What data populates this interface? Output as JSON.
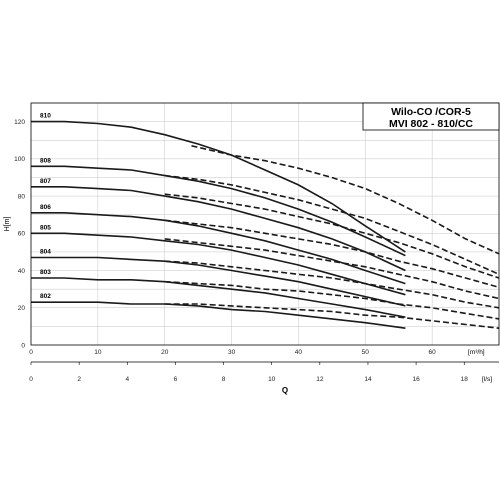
{
  "chart_data": {
    "type": "line",
    "title_lines": [
      "Wilo-CO /COR-5",
      "MVI 802 - 810/CC"
    ],
    "ylabel": "H[m]",
    "xlabel": "Q",
    "x_unit_top": "[m³/h]",
    "x_unit_bottom": "[l/s]",
    "xlim": [
      0,
      70
    ],
    "ylim": [
      0,
      130
    ],
    "x_ticks": [
      0,
      10,
      20,
      30,
      40,
      50,
      60
    ],
    "y_ticks": [
      0,
      20,
      40,
      60,
      80,
      100,
      120
    ],
    "x2_ticks": [
      0,
      2,
      4,
      6,
      8,
      10,
      12,
      14,
      16,
      18
    ],
    "grid": true,
    "line_color": "#1a1a1a",
    "series": [
      {
        "name": "810",
        "solid": {
          "x": [
            0,
            5,
            10,
            15,
            20,
            25,
            30,
            35,
            40,
            45,
            50,
            56
          ],
          "y": [
            120,
            120,
            119,
            117,
            113,
            108,
            102,
            94,
            86,
            76,
            64,
            50
          ]
        },
        "dashed": {
          "x": [
            24,
            30,
            35,
            40,
            45,
            50,
            55,
            60,
            65,
            70
          ],
          "y": [
            107,
            102,
            99,
            95,
            90,
            84,
            76,
            67,
            57,
            49
          ]
        }
      },
      {
        "name": "808",
        "solid": {
          "x": [
            0,
            5,
            10,
            15,
            20,
            25,
            30,
            35,
            40,
            45,
            50,
            56
          ],
          "y": [
            96,
            96,
            95,
            94,
            91,
            88,
            84,
            79,
            73,
            66,
            58,
            48
          ]
        },
        "dashed": {
          "x": [
            20,
            25,
            30,
            35,
            40,
            45,
            50,
            55,
            60,
            65,
            70
          ],
          "y": [
            91,
            89,
            86,
            82,
            78,
            73,
            68,
            61,
            54,
            46,
            38
          ]
        }
      },
      {
        "name": "807",
        "solid": {
          "x": [
            0,
            5,
            10,
            15,
            20,
            25,
            30,
            35,
            40,
            45,
            50,
            56
          ],
          "y": [
            85,
            85,
            84,
            83,
            80,
            77,
            73,
            68,
            63,
            57,
            50,
            40
          ]
        },
        "dashed": {
          "x": [
            20,
            25,
            30,
            35,
            40,
            45,
            50,
            55,
            60,
            65,
            70
          ],
          "y": [
            81,
            79,
            76,
            73,
            69,
            65,
            60,
            55,
            49,
            42,
            36
          ]
        }
      },
      {
        "name": "806",
        "solid": {
          "x": [
            0,
            5,
            10,
            15,
            20,
            25,
            30,
            35,
            40,
            45,
            50,
            56
          ],
          "y": [
            71,
            71,
            70,
            69,
            67,
            64,
            60,
            56,
            51,
            46,
            40,
            33
          ]
        },
        "dashed": {
          "x": [
            20,
            25,
            30,
            35,
            40,
            45,
            50,
            55,
            60,
            65,
            70
          ],
          "y": [
            67,
            65,
            63,
            60,
            57,
            54,
            50,
            45,
            41,
            36,
            31
          ]
        }
      },
      {
        "name": "805",
        "solid": {
          "x": [
            0,
            5,
            10,
            15,
            20,
            25,
            30,
            35,
            40,
            45,
            50,
            56
          ],
          "y": [
            60,
            60,
            59,
            58,
            56,
            54,
            51,
            47,
            43,
            38,
            33,
            27
          ]
        },
        "dashed": {
          "x": [
            20,
            25,
            30,
            35,
            40,
            45,
            50,
            55,
            60,
            65,
            70
          ],
          "y": [
            57,
            55,
            53,
            51,
            48,
            45,
            42,
            38,
            34,
            29,
            25
          ]
        }
      },
      {
        "name": "804",
        "solid": {
          "x": [
            0,
            5,
            10,
            15,
            20,
            25,
            30,
            35,
            40,
            45,
            50,
            56
          ],
          "y": [
            47,
            47,
            47,
            46,
            45,
            43,
            40,
            37,
            34,
            30,
            26,
            21
          ]
        },
        "dashed": {
          "x": [
            20,
            25,
            30,
            35,
            40,
            45,
            50,
            55,
            60,
            65,
            70
          ],
          "y": [
            45,
            44,
            42,
            40,
            38,
            36,
            33,
            30,
            27,
            23,
            20
          ]
        }
      },
      {
        "name": "803",
        "solid": {
          "x": [
            0,
            5,
            10,
            15,
            20,
            25,
            30,
            35,
            40,
            45,
            50,
            56
          ],
          "y": [
            36,
            36,
            35,
            35,
            34,
            32,
            30,
            28,
            25,
            22,
            19,
            15
          ]
        },
        "dashed": {
          "x": [
            20,
            25,
            30,
            35,
            40,
            45,
            50,
            55,
            60,
            65,
            70
          ],
          "y": [
            34,
            33,
            32,
            30,
            29,
            27,
            25,
            22,
            20,
            17,
            14
          ]
        }
      },
      {
        "name": "802",
        "solid": {
          "x": [
            0,
            5,
            10,
            15,
            20,
            25,
            30,
            35,
            40,
            45,
            50,
            56
          ],
          "y": [
            23,
            23,
            23,
            22,
            22,
            21,
            19,
            18,
            16,
            14,
            12,
            9
          ]
        },
        "dashed": {
          "x": [
            20,
            25,
            30,
            35,
            40,
            45,
            50,
            55,
            60,
            65,
            70
          ],
          "y": [
            22,
            22,
            21,
            20,
            19,
            18,
            16,
            15,
            13,
            11,
            9
          ]
        }
      }
    ]
  }
}
